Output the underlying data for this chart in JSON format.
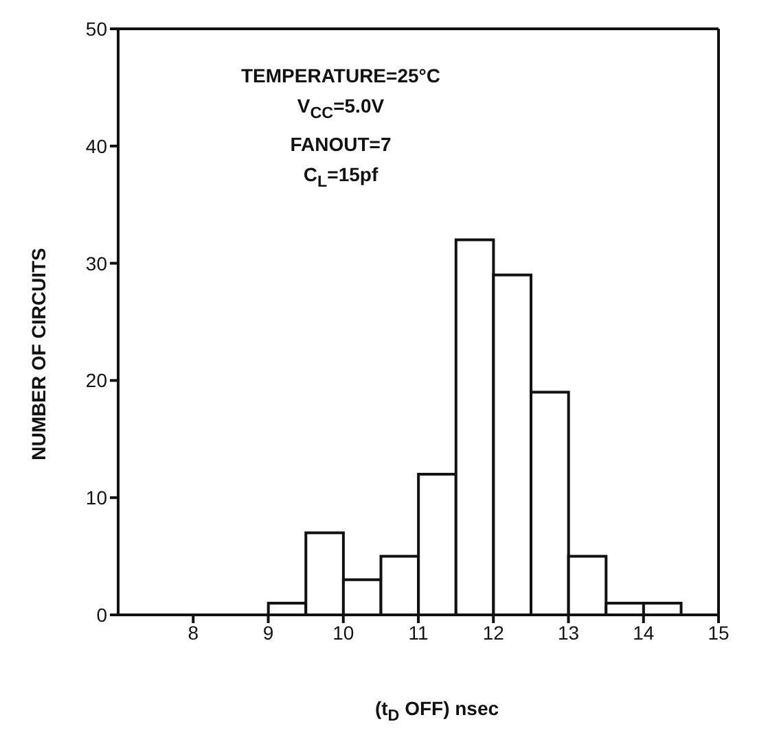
{
  "chart_data": {
    "type": "histogram",
    "xlabel": "(t$_{D}$ OFF) nsec",
    "ylabel": "NUMBER OF CIRCUITS",
    "annotations": [
      "TEMPERATURE=25°C",
      "V$_{CC}$=5.0V",
      "FANOUT=7",
      "C$_{L}$=15pf"
    ],
    "bins": [
      9,
      9.5,
      10,
      10.5,
      11,
      11.5,
      12,
      12.5,
      13,
      13.5,
      14,
      14.5
    ],
    "values": [
      1,
      7,
      3,
      5,
      12,
      32,
      29,
      19,
      5,
      1,
      1
    ],
    "color": "#ffffff",
    "xlim": [
      7,
      15
    ],
    "xticks": [
      8,
      9,
      10,
      11,
      12,
      13,
      14,
      15
    ],
    "ylim": [
      0,
      50
    ],
    "yticks": [
      0,
      10,
      20,
      30,
      40,
      50
    ]
  }
}
